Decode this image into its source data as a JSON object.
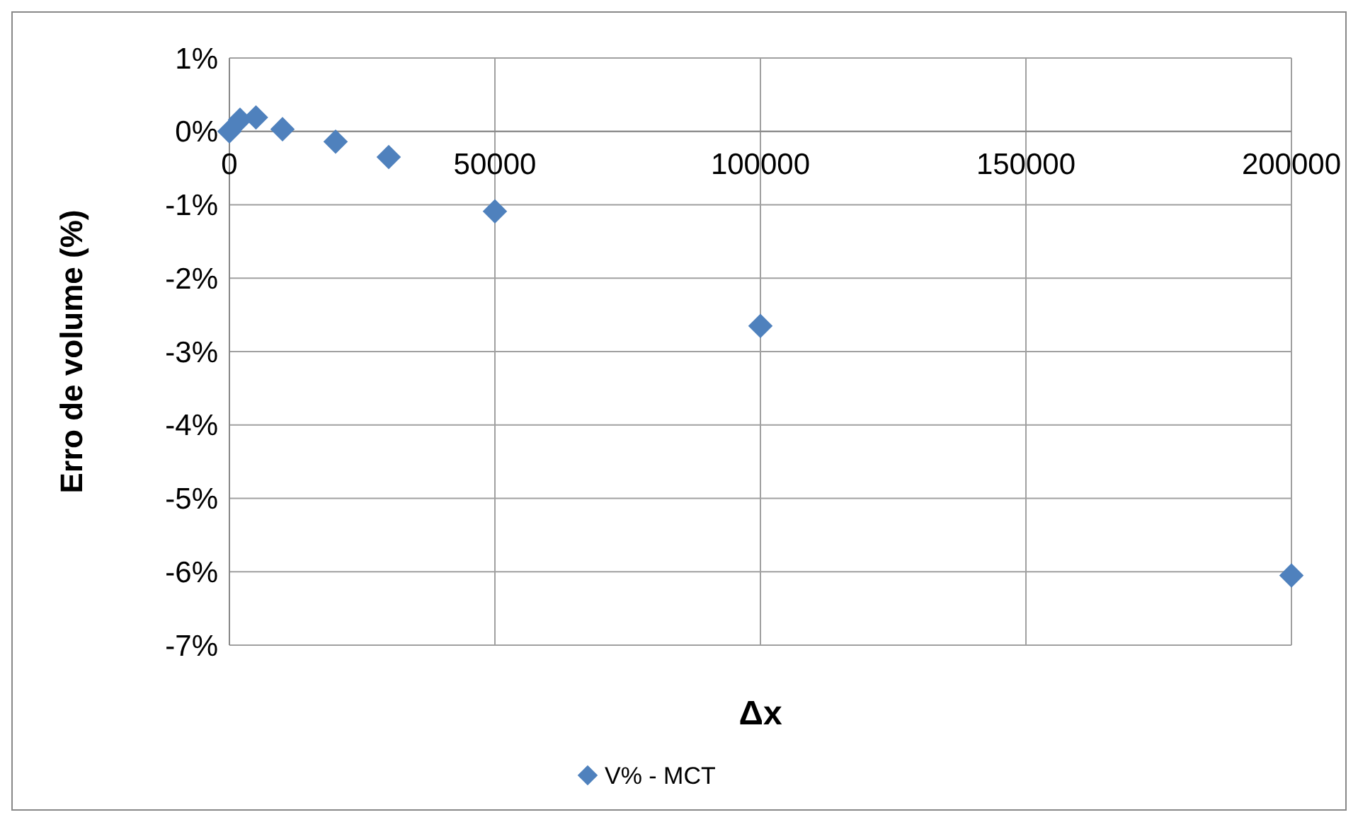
{
  "chart_data": {
    "type": "scatter",
    "xlabel": "Δx",
    "ylabel": "Erro de volume (%)",
    "x": [
      0,
      2000,
      5000,
      10000,
      20000,
      30000,
      50000,
      100000,
      200000
    ],
    "series": [
      {
        "name": "V% - MCT",
        "color": "#4f81bd",
        "values": [
          0,
          0.16,
          0.19,
          0.03,
          -0.14,
          -0.35,
          -1.09,
          -2.65,
          -6.05
        ]
      }
    ],
    "xlim": [
      0,
      200000
    ],
    "xticks": [
      0,
      50000,
      100000,
      150000,
      200000
    ],
    "ylim": [
      -7,
      1
    ],
    "yticks": [
      {
        "value": 1,
        "label": "1%"
      },
      {
        "value": 0,
        "label": "0%"
      },
      {
        "value": -1,
        "label": "-1%"
      },
      {
        "value": -2,
        "label": "-2%"
      },
      {
        "value": -3,
        "label": "-3%"
      },
      {
        "value": -4,
        "label": "-4%"
      },
      {
        "value": -5,
        "label": "-5%"
      },
      {
        "value": -6,
        "label": "-6%"
      },
      {
        "value": -7,
        "label": "-7%"
      }
    ],
    "grid": true,
    "legend": "bottom",
    "marker": "diamond"
  }
}
